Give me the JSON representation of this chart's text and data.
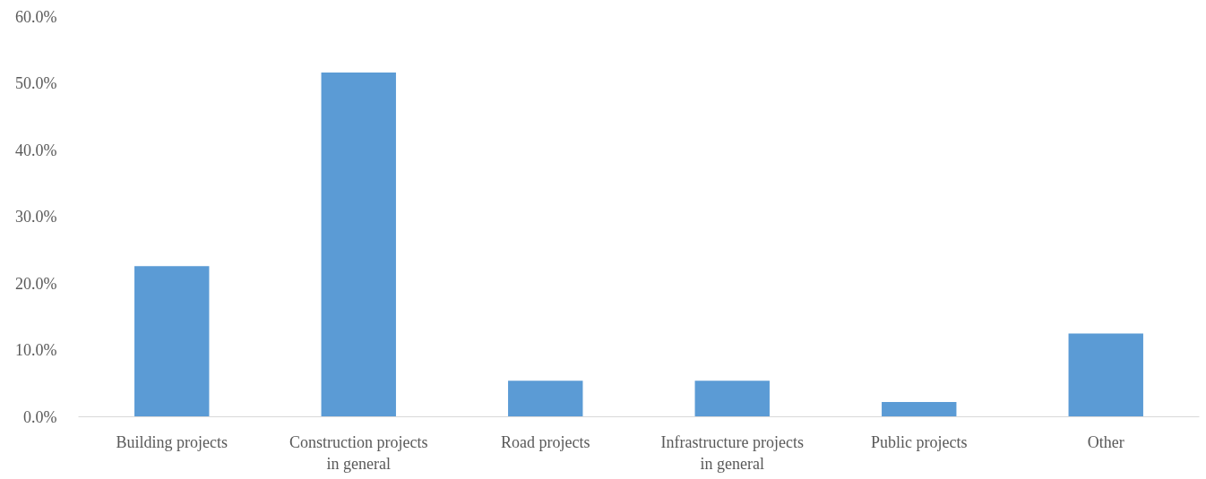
{
  "chart_data": {
    "type": "bar",
    "categories": [
      "Building projects",
      "Construction projects in general",
      "Road projects",
      "Infrastructure projects in general",
      "Public projects",
      "Other"
    ],
    "values": [
      22.6,
      51.6,
      5.4,
      5.4,
      2.2,
      12.5
    ],
    "color": "#5b9bd5",
    "ylim": [
      0,
      60
    ],
    "yticks": [
      {
        "value": 0,
        "label": "0.0%"
      },
      {
        "value": 10,
        "label": "10.0%"
      },
      {
        "value": 20,
        "label": "20.0%"
      },
      {
        "value": 30,
        "label": "30.0%"
      },
      {
        "value": 40,
        "label": "40.0%"
      },
      {
        "value": 50,
        "label": "50.0%"
      },
      {
        "value": 60,
        "label": "60.0%"
      }
    ],
    "grid": false
  }
}
